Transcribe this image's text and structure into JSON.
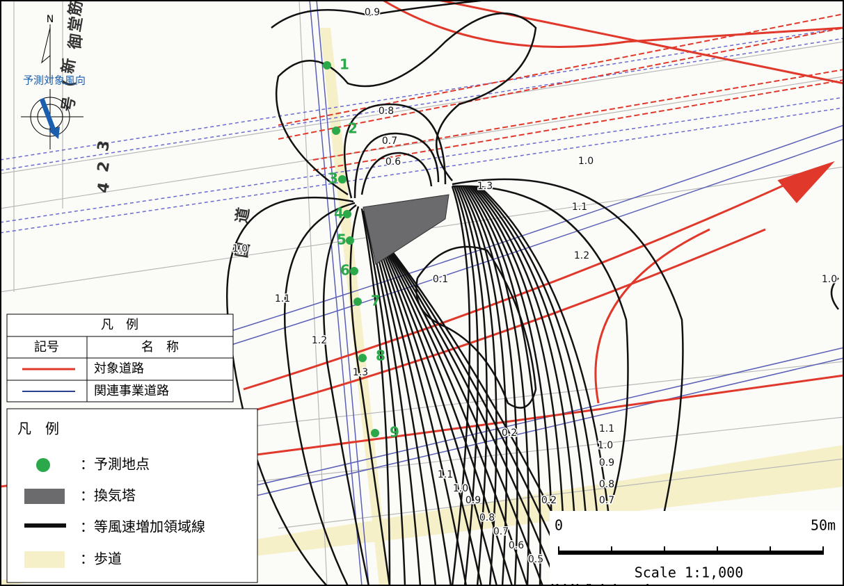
{
  "compass": {
    "north": "N",
    "wind_direction": "予測対象風向"
  },
  "road_labels": [
    "国",
    "道",
    "4",
    "2",
    "3",
    "号",
    "(",
    "新",
    "御",
    "堂",
    "筋"
  ],
  "points": [
    "1",
    "2",
    "3",
    "4",
    "5",
    "6",
    "7",
    "8",
    "9"
  ],
  "contour_labels": [
    "0.9",
    "0.8",
    "0.7",
    "0.6",
    "1.3",
    "1.0",
    "1.1",
    "1.2",
    "1.0",
    "1.1",
    "1.2",
    "1.3",
    "0.1",
    "0.2",
    "1.1",
    "1.0",
    "0.9",
    "0.8",
    "0.7",
    "1.1",
    "1.0",
    "0.9",
    "0.8",
    "0.7",
    "0.6",
    "0.5",
    "0.2",
    "1.0"
  ],
  "legend_roads": {
    "title": "凡　例",
    "headers": [
      "記号",
      "名　称"
    ],
    "rows": [
      "対象道路",
      "関連事業道路"
    ]
  },
  "legend_symbols": {
    "title": "凡　例",
    "items": [
      "：予測地点",
      "：換気塔",
      "：等風速増加領域線",
      "：歩道"
    ]
  },
  "scale": {
    "start": "0",
    "end": "50m",
    "caption": "Scale 1:1,000"
  }
}
